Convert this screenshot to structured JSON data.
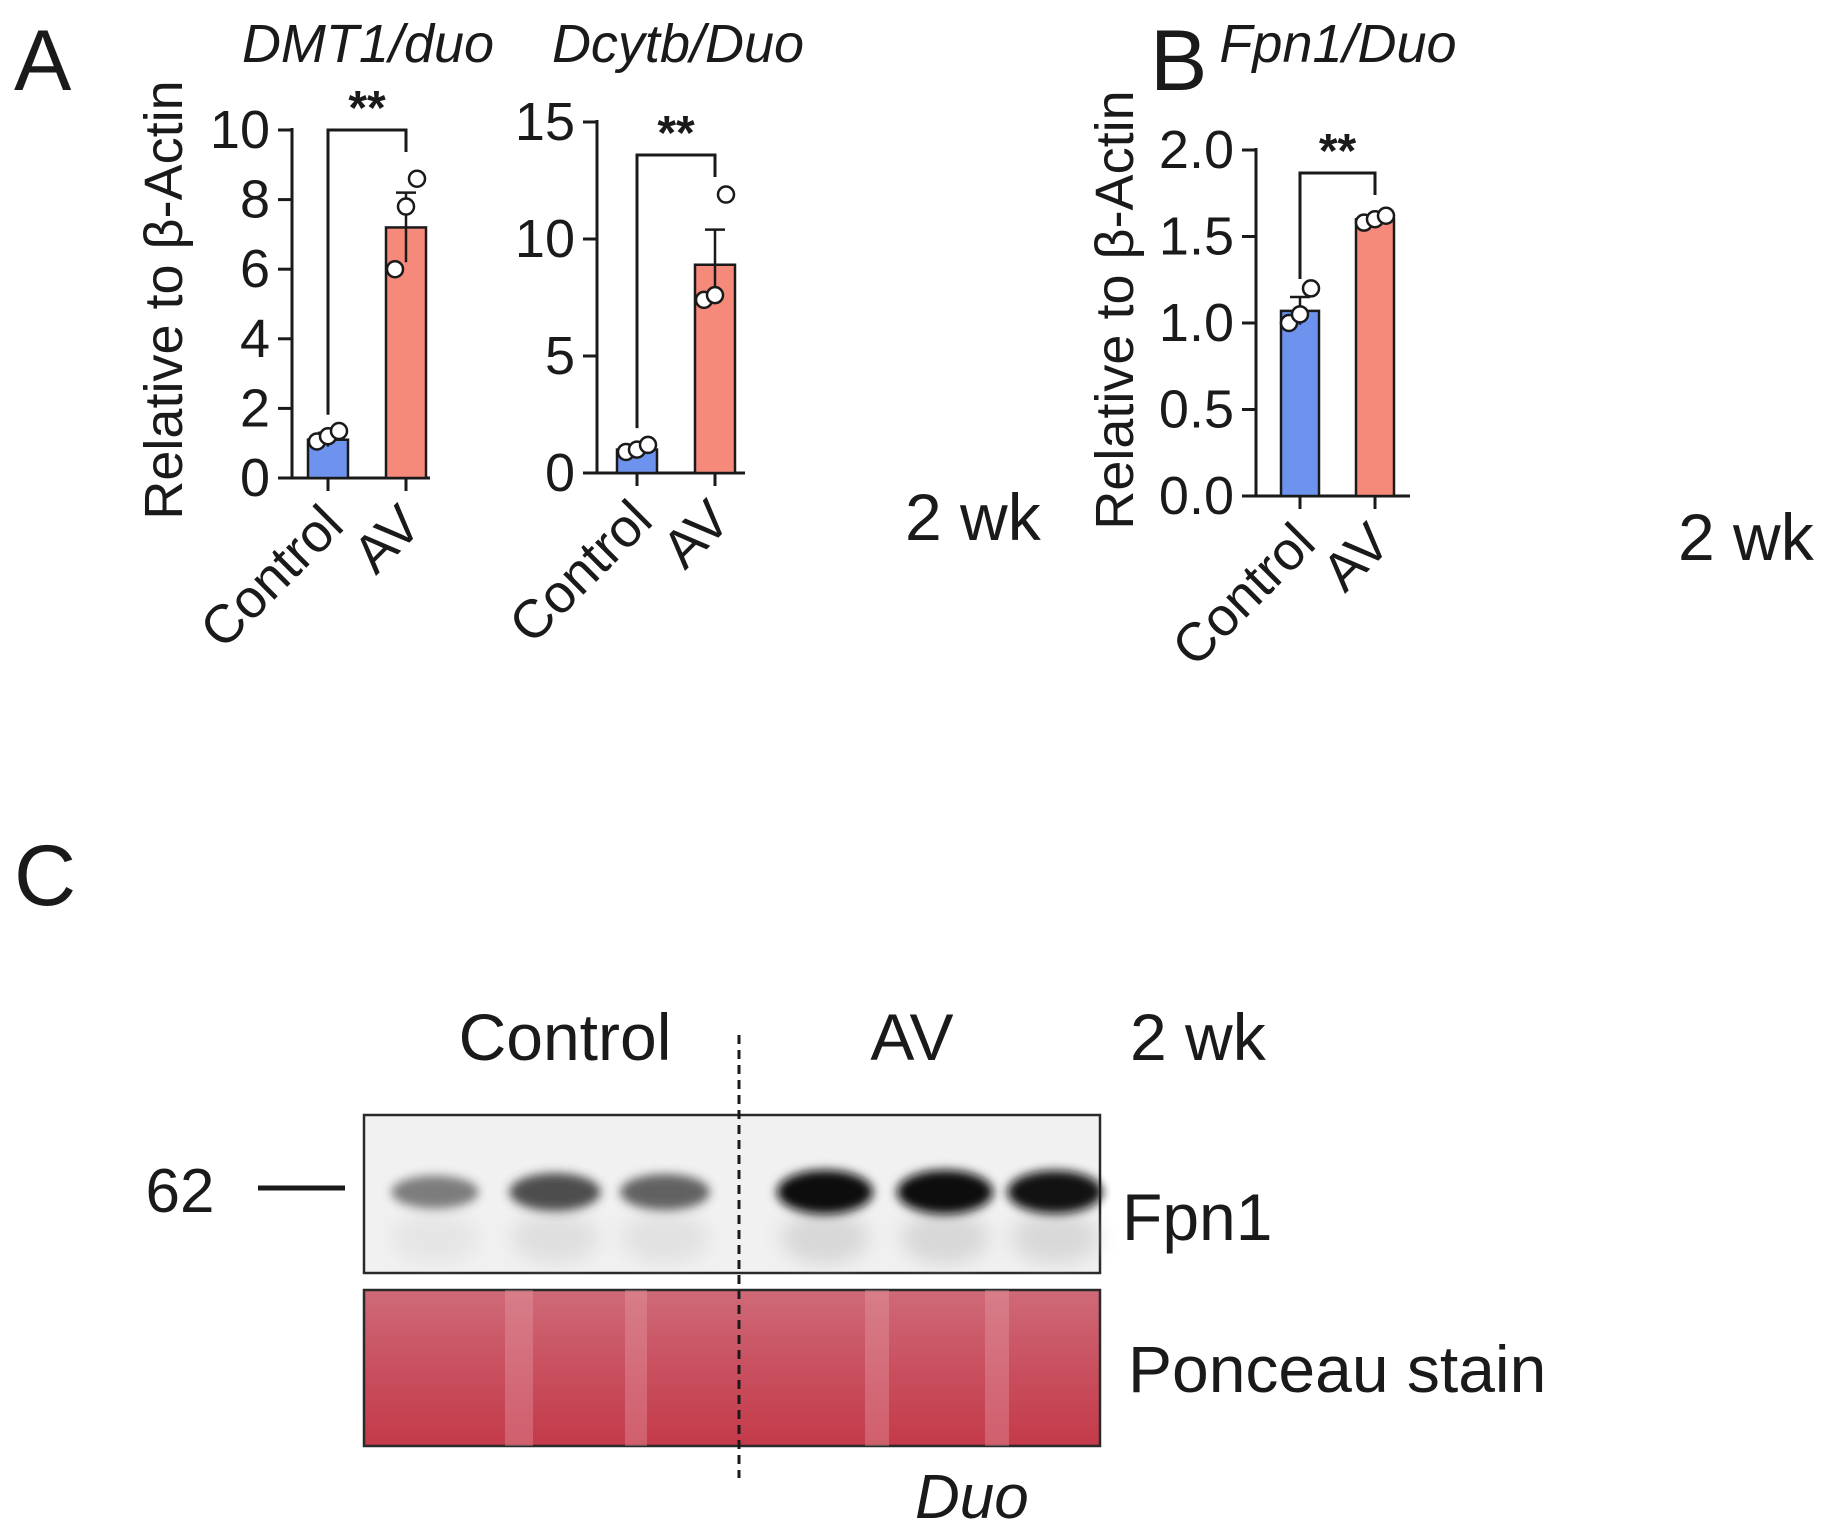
{
  "panel_letters": {
    "a": "A",
    "b": "B",
    "c": "C"
  },
  "colors": {
    "control": "#6D93EE",
    "av": "#F58A7B",
    "axis": "#1a1a1a"
  },
  "chart_data": [
    {
      "type": "bar",
      "id": "dmt1",
      "title": "DMT1/duo",
      "ylabel": "Relative to β-Actin",
      "categories": [
        "Control",
        "AV"
      ],
      "values": [
        1.1,
        7.2
      ],
      "error": [
        0.2,
        1.0
      ],
      "points": [
        [
          1.05,
          1.2,
          1.35
        ],
        [
          6.0,
          7.8,
          8.6
        ]
      ],
      "ylim": [
        0,
        10
      ],
      "yticks": [
        "0",
        "2",
        "4",
        "6",
        "8",
        "10"
      ],
      "significance": "**"
    },
    {
      "type": "bar",
      "id": "dcytb",
      "title": "Dcytb/Duo",
      "ylabel": "",
      "categories": [
        "Control",
        "AV"
      ],
      "values": [
        1.0,
        8.9
      ],
      "error": [
        0.15,
        1.5
      ],
      "points": [
        [
          0.9,
          1.0,
          1.2
        ],
        [
          7.4,
          7.6,
          11.9
        ]
      ],
      "ylim": [
        0,
        15
      ],
      "yticks": [
        "0",
        "5",
        "10",
        "15"
      ],
      "significance": "**",
      "side_label": "2 wk"
    },
    {
      "type": "bar",
      "id": "fpn1",
      "title": "Fpn1/Duo",
      "ylabel": "Relative to β-Actin",
      "categories": [
        "Control",
        "AV"
      ],
      "values": [
        1.07,
        1.6
      ],
      "error": [
        0.08,
        0.02
      ],
      "points": [
        [
          1.0,
          1.05,
          1.2
        ],
        [
          1.58,
          1.6,
          1.62
        ]
      ],
      "ylim": [
        0,
        2.0
      ],
      "yticks": [
        "0.0",
        "0.5",
        "1.0",
        "1.5",
        "2.0"
      ],
      "significance": "**",
      "side_label": "2 wk"
    }
  ],
  "blot": {
    "group_control": "Control",
    "group_av": "AV",
    "timepoint": "2 wk",
    "marker": "62",
    "fpn1_label": "Fpn1",
    "ponceau_label": "Ponceau stain",
    "tissue_label": "Duo",
    "band_intensity": [
      0.45,
      0.7,
      0.6,
      1.0,
      1.0,
      0.95
    ]
  }
}
